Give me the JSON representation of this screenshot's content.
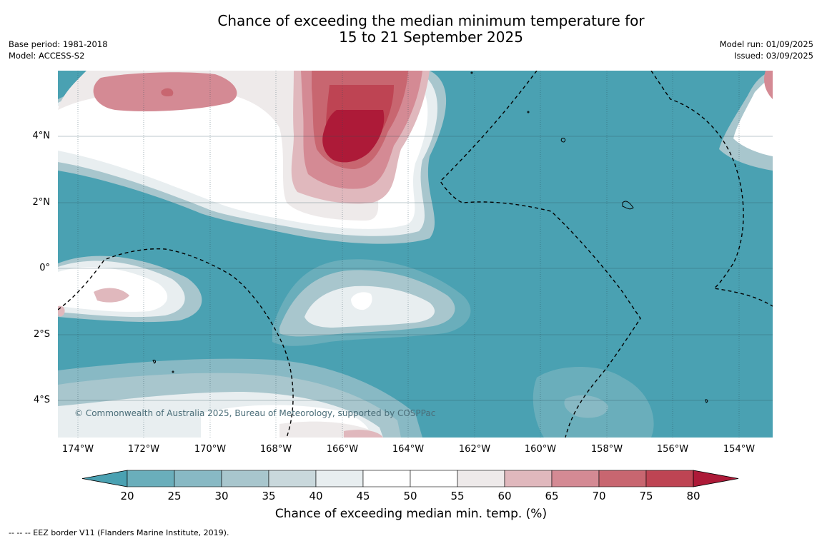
{
  "title": {
    "line1": "Chance of exceeding the median minimum temperature for",
    "line2": "15 to 21 September 2025"
  },
  "meta_left": {
    "base_period": "Base period: 1981-2018",
    "model": "Model: ACCESS-S2"
  },
  "meta_right": {
    "model_run": "Model run: 01/09/2025",
    "issued": "Issued: 03/09/2025"
  },
  "lat_labels": [
    "4°N",
    "2°N",
    "0°",
    "2°S",
    "4°S"
  ],
  "lon_labels": [
    "174°W",
    "172°W",
    "170°W",
    "168°W",
    "166°W",
    "164°W",
    "162°W",
    "160°W",
    "158°W",
    "156°W",
    "154°W"
  ],
  "copyright": "© Commonwealth of Australia 2025, Bureau of Meteorology, supported by COSPPac",
  "colorbar": {
    "ticks": [
      "20",
      "25",
      "30",
      "35",
      "40",
      "45",
      "50",
      "55",
      "60",
      "65",
      "70",
      "75",
      "80"
    ],
    "colors": [
      "#4aa1b2",
      "#6aaebb",
      "#88b9c4",
      "#a8c6cd",
      "#c9d8dc",
      "#e8eef0",
      "#ffffff",
      "#ffffff",
      "#eeeaea",
      "#e0b8bd",
      "#d48a94",
      "#c86670",
      "#be4453",
      "#ad1a38"
    ],
    "label": "Chance of exceeding median min. temp. (%)"
  },
  "eez_note": "-- -- -- EEZ border V11 (Flanders Marine Institute, 2019)."
}
